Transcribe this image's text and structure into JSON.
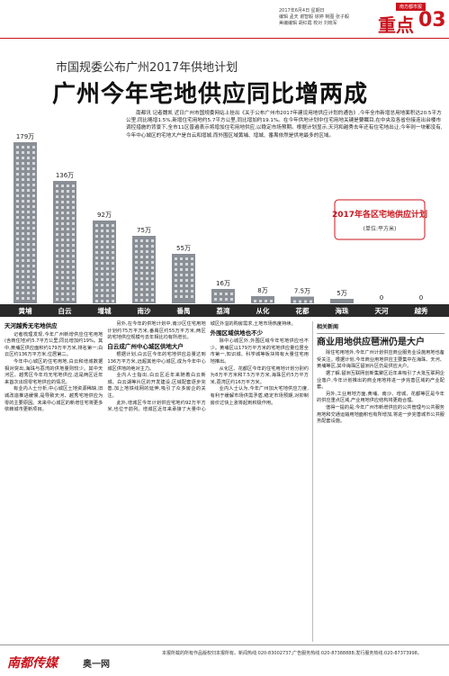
{
  "header": {
    "date": "2017年6月4日 星期日",
    "editors": [
      "编辑 孟天 谢智毅 徐婷 制图 张子毅",
      "美编编辑 胡红霞 校对 刘晓军"
    ],
    "brand": "南方都市报",
    "section": "重点",
    "page": "03"
  },
  "article": {
    "kicker": "市国规委公布广州2017年供地计划",
    "headline": "广州今年宅地供应同比增两成",
    "lead": "南都讯 记者魏凯 近日广州市国规委网站上挂出《关于公布广州市2017年建设用地供应计划的通告》,今年全市新增总用地面积达20.5平方公里,同比略增1.5%,新增住宅用地约5.7平方公里,同比增加约19.1%。在今年供地计划中住宅用地关键是要瞩目,在中央及各省份接连出台楼市调控措施的背景下,全市11区普遍表示将增加住宅用地供应,以稳定市场预期。根据计划显示,天河和越秀去年还有住宅地出让,今年则一块都没有,今年中心城区的宅地大户是白云和增城,而外围区域黄埔、增城、番禺依然是供地最多的区域。",
    "sections": [
      {
        "heading": "天河越秀无宅地供应",
        "paragraphs": [
          "记者梳理发现,今年广州新增供应住宅用地(含商住地)约5.7平方公里,同比增加约19%。其中,黄埔区供应面积约179万平方米,排名第一;白云区约136万平方米,位居第二。",
          "今年中心城区的住宅用地,白云和增城数据相对突出,海珠与荔湾的供地量则较少。其中天河区、越秀区今年均无宅地供应,这是两区近年来首次出现零宅地供应的情况。",
          "有业内人士分析,中心城区土地资源稀缺,旧城改造推进缓慢,是导致天河、越秀宅地供应为零的主要原因。未来中心城区的新增住宅将更多依赖城市更新项目。",
          "另外,在今年的供地计划中,南沙区住宅用地计划约75万平方米,番禺区约55万平方米,两区的宅地供应规模与去年相比均有所增长。"
        ]
      },
      {
        "heading": "白云成广州中心城区供地大户",
        "paragraphs": [
          "根据计划,白云区今年的宅地供应总量达到136万平方米,远超其他中心城区,成为今年中心城区供地的绝对主力。",
          "业内人士指出,白云区近年来随着白云新城、白云湖等片区的开发建设,区域配套逐步完善,加上地铁线网的延伸,吸引了众多房企的关注。",
          "此外,增城区今年计划供应宅地约92万平方米,也位于前列。增城区近年来承接了大量中心城区外溢的购房需求,土地市场热度持续。"
        ]
      },
      {
        "heading": "外围区域供地也不少",
        "paragraphs": [
          "除中心城区外,外围区域今年宅地供应也不少。黄埔区以179万平方米的宅地供应量位居全市第一,知识城、科学城等板块将有大量住宅用地推出。",
          "从化区、花都区今年的住宅用地计划分别约为8万平方米和7.5万平方米,海珠区约5万平方米,荔湾区约16万平方米。",
          "业内人士认为,今年广州加大宅地供应力度,有利于缓解市场供需矛盾,稳定市场预期,对抑制房价过快上涨将起到积极作用。"
        ]
      }
    ]
  },
  "sidebar": {
    "label": "相关新闻",
    "headline": "商业用地供应琶洲仍是大户",
    "paragraphs": [
      "除住宅用地外,今年广州计划供应商业服务业设施用地也备受关注。根据计划,今年商业用地供应主要集中在海珠、天河、黄埔等区,其中海珠区琶洲片区仍是供应大户。",
      "据了解,琶洲互联网创新集聚区近年来吸引了大批互联网企业落户,今年计划推出的商业用地将进一步完善区域的产业配套。",
      "另外,工业用地方面,黄埔、南沙、增城、花都等区是今年的供应重点区域,产业用地供应结构将更趋合理。",
      "值得一提的是,今年广州市新增供应的公共管理与公共服务用地和交通运输用地面积也有所增加,将进一步完善城市公共服务配套设施。"
    ]
  },
  "chart": {
    "type": "bar",
    "title": "2017年各区宅地供应计划",
    "unit": "(单位:平方米)",
    "categories": [
      "黄埔",
      "白云",
      "增城",
      "南沙",
      "番禺",
      "荔湾",
      "从化",
      "花都",
      "海珠",
      "天河",
      "越秀"
    ],
    "values": [
      179,
      136,
      92,
      75,
      55,
      16,
      8,
      7.5,
      5,
      0,
      0
    ],
    "value_labels": [
      "179万",
      "136万",
      "92万",
      "75万",
      "55万",
      "16万",
      "8万",
      "7.5万",
      "5万",
      "0",
      "0"
    ],
    "color": "#8a8f96"
  },
  "footer": {
    "logo": "南都传媒",
    "site": "奥一网",
    "notice": "本报所载的所有作品版权归本报所有。新闻热线:020-83002737;广告服务热线:020-87388888;发行服务热线:020-87373998。"
  }
}
